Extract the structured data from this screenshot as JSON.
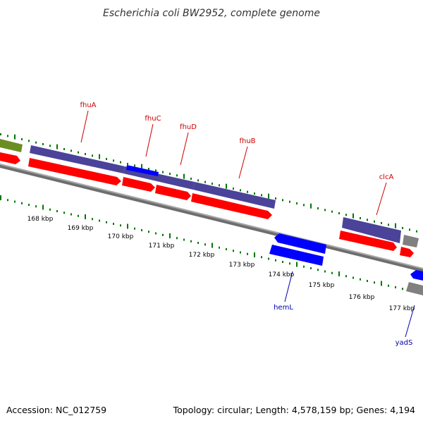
{
  "title": "Escherichia coli BW2952, complete genome",
  "footer": {
    "accession": "Accession: NC_012759",
    "topology": "Topology: circular; Length: 4,578,159 bp; Genes: 4,194"
  },
  "colors": {
    "forward_cds": "#ff0000",
    "reverse_cds": "#0000ff",
    "forward_gene": "#4b4399",
    "other_feature": "#808080",
    "olive_feature": "#6b8e23",
    "backbone": "#888888",
    "tick": "#007700",
    "forward_label": "#cc0000",
    "reverse_label": "#0000aa"
  },
  "ticks": [
    {
      "label": "168 kbp"
    },
    {
      "label": "169 kbp"
    },
    {
      "label": "170 kbp"
    },
    {
      "label": "171 kbp"
    },
    {
      "label": "172 kbp"
    },
    {
      "label": "173 kbp"
    },
    {
      "label": "174 kbp"
    },
    {
      "label": "175 kbp"
    },
    {
      "label": "176 kbp"
    },
    {
      "label": "177 kbp"
    }
  ],
  "gene_labels": [
    {
      "name": "fhuA",
      "strand": "forward"
    },
    {
      "name": "fhuC",
      "strand": "forward"
    },
    {
      "name": "fhuD",
      "strand": "forward"
    },
    {
      "name": "fhuB",
      "strand": "forward"
    },
    {
      "name": "clcA",
      "strand": "forward"
    },
    {
      "name": "hemL",
      "strand": "reverse"
    },
    {
      "name": "yadS",
      "strand": "reverse"
    }
  ]
}
